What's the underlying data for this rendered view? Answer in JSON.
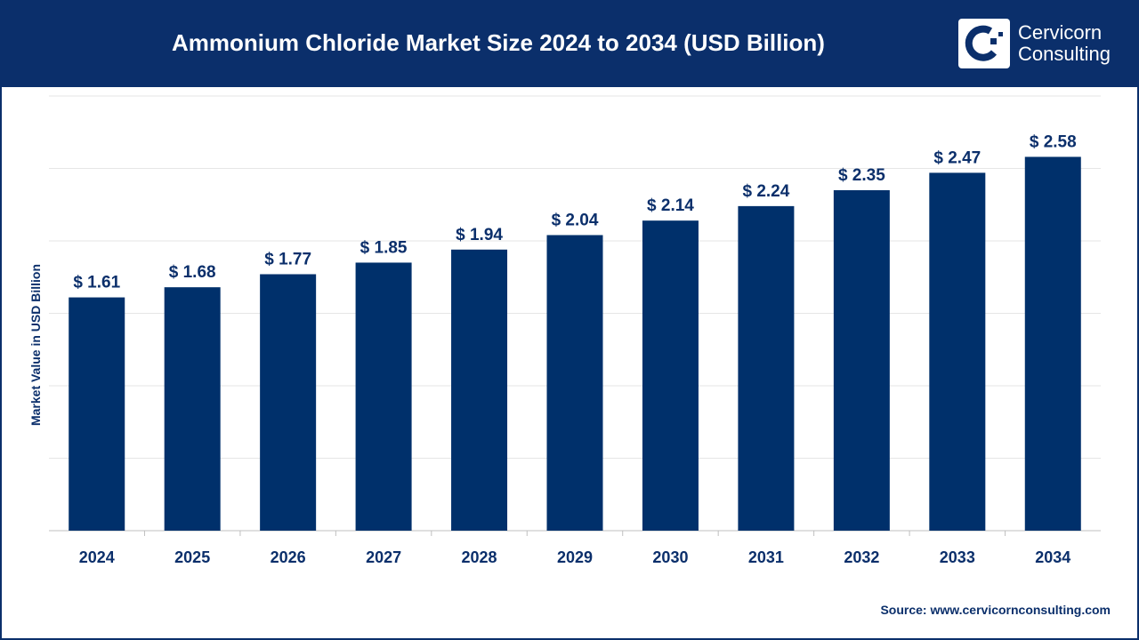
{
  "header": {
    "title": "Ammonium Chloride Market Size 2024 to 2034 (USD Billion)",
    "logo": {
      "line1": "Cervicorn",
      "line2": "Consulting"
    }
  },
  "source": "Source: www.cervicornconsulting.com",
  "colors": {
    "header": "#0b2f6b",
    "bar": "#00306b",
    "grid": "#e6e6e6"
  },
  "chart_data": {
    "type": "bar",
    "title": "Ammonium Chloride Market Size 2024 to 2034 (USD Billion)",
    "xlabel": "",
    "ylabel": "Market Value in USD Billion",
    "categories": [
      "2024",
      "2025",
      "2026",
      "2027",
      "2028",
      "2029",
      "2030",
      "2031",
      "2032",
      "2033",
      "2034"
    ],
    "values": [
      1.61,
      1.68,
      1.77,
      1.85,
      1.94,
      2.04,
      2.14,
      2.24,
      2.35,
      2.47,
      2.58
    ],
    "data_labels": [
      "$ 1.61",
      "$ 1.68",
      "$ 1.77",
      "$ 1.85",
      "$ 1.94",
      "$ 2.04",
      "$ 2.14",
      "$ 2.24",
      "$ 2.35",
      "$ 2.47",
      "$ 2.58"
    ],
    "ylim": [
      0,
      3
    ],
    "grid": true,
    "y_tick_labels_shown": false
  }
}
